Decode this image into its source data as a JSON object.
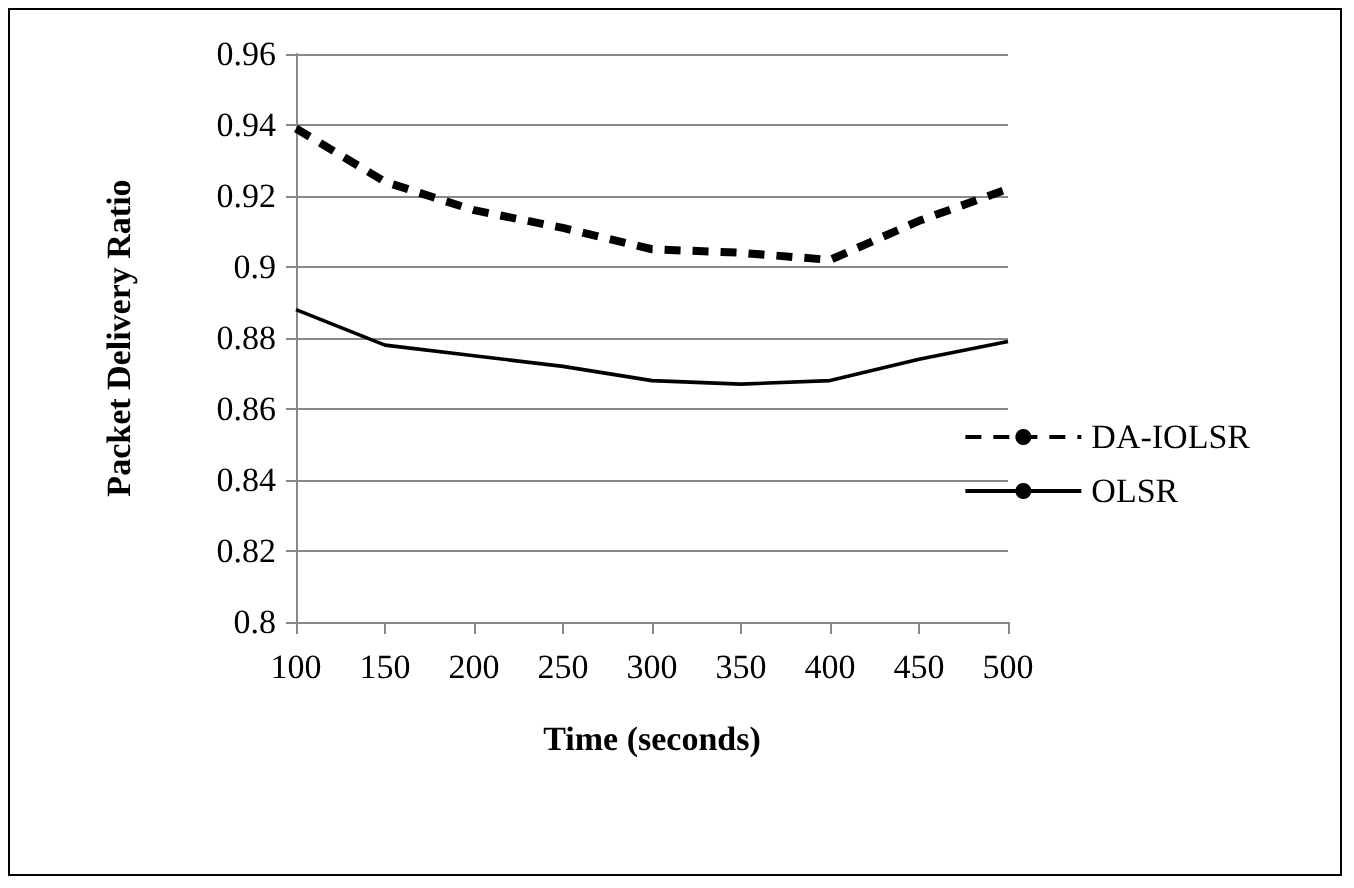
{
  "chart_data": {
    "type": "line",
    "xlabel": "Time (seconds)",
    "ylabel": "Packet Delivery Ratio",
    "categories": [
      "100",
      "150",
      "200",
      "250",
      "300",
      "350",
      "400",
      "450",
      "500"
    ],
    "series": [
      {
        "name": "DA-IOLSR",
        "color": "#000000",
        "line_style": "dashed",
        "values": [
          0.939,
          0.924,
          0.916,
          0.911,
          0.905,
          0.904,
          0.902,
          0.913,
          0.922
        ]
      },
      {
        "name": "OLSR",
        "color": "#000000",
        "line_style": "solid",
        "values": [
          0.888,
          0.878,
          0.875,
          0.872,
          0.868,
          0.867,
          0.868,
          0.874,
          0.879
        ]
      }
    ],
    "ylim": [
      0.8,
      0.96
    ],
    "yticks": [
      0.8,
      0.82,
      0.84,
      0.86,
      0.88,
      0.9,
      0.92,
      0.94,
      0.96
    ],
    "grid": "y",
    "legend": "right",
    "marker": "none"
  }
}
